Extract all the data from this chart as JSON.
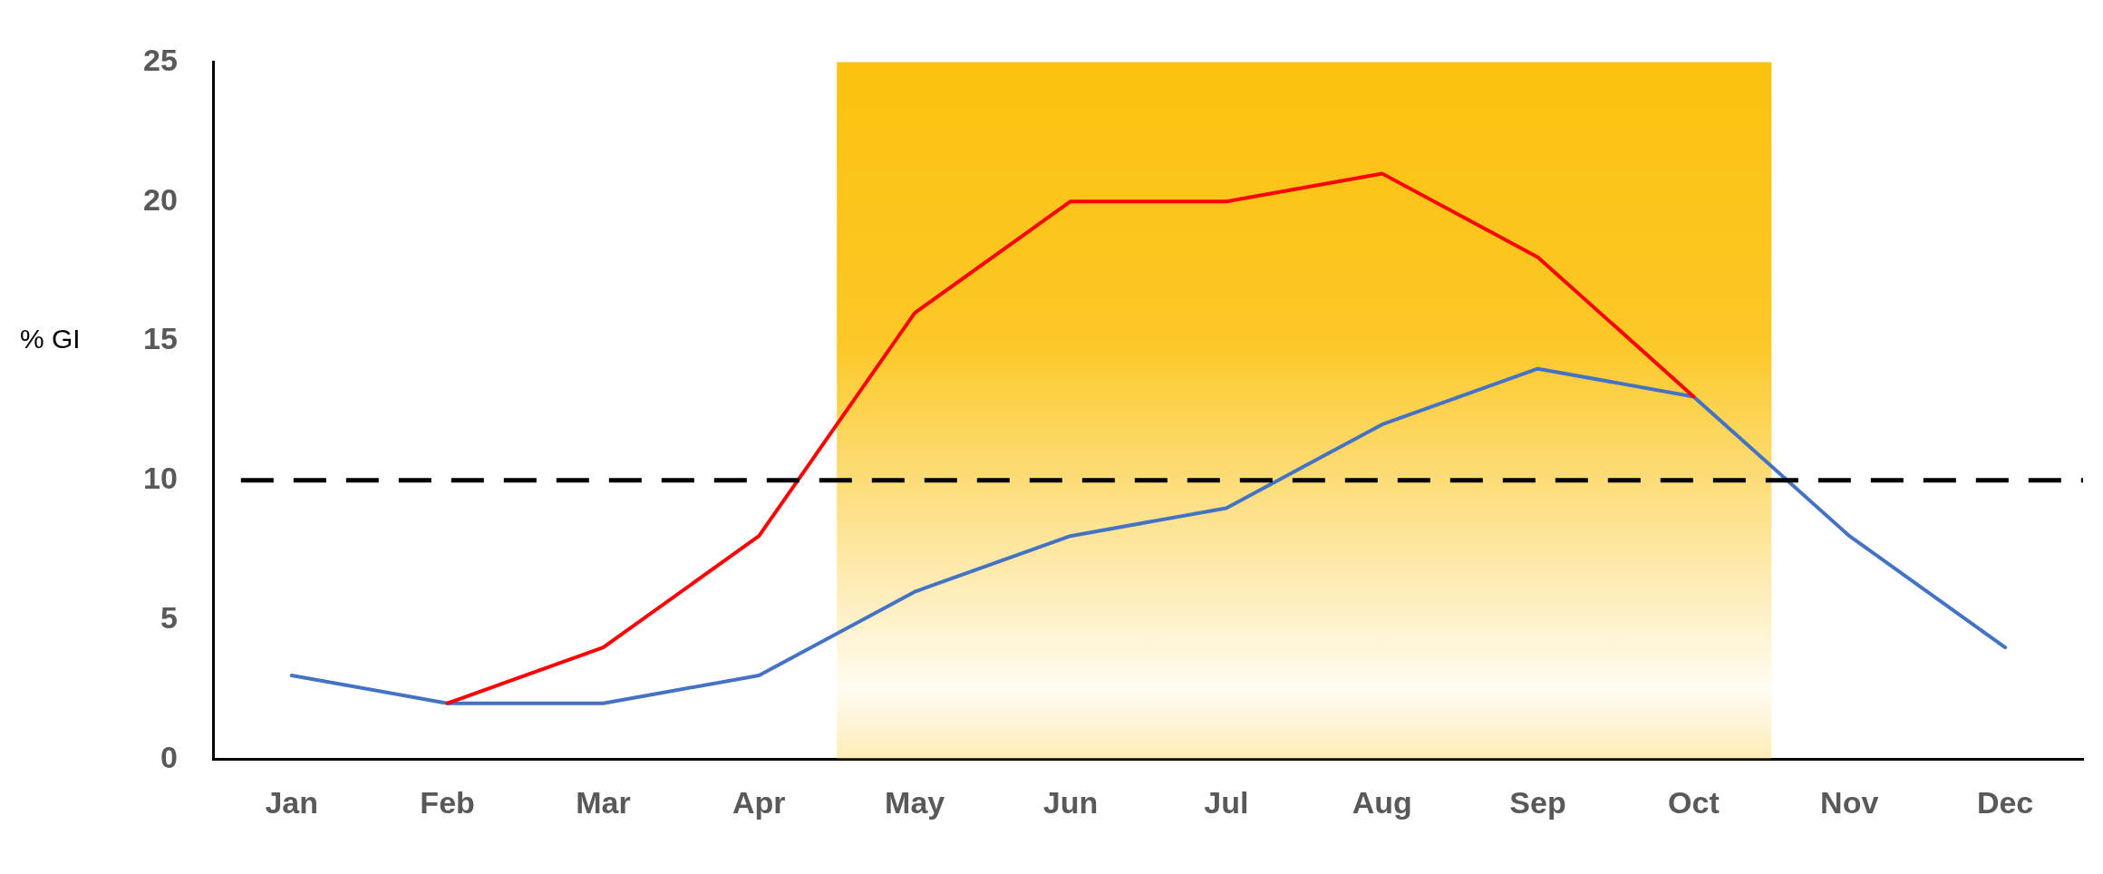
{
  "chart_data": {
    "type": "line",
    "ylabel": "% GI",
    "categories": [
      "Jan",
      "Feb",
      "Mar",
      "Apr",
      "May",
      "Jun",
      "Jul",
      "Aug",
      "Sep",
      "Oct",
      "Nov",
      "Dec"
    ],
    "ylim": [
      0,
      25
    ],
    "yticks": [
      0,
      5,
      10,
      15,
      20,
      25
    ],
    "series": [
      {
        "color": "#ff0000",
        "values": [
          null,
          2,
          4,
          8,
          16,
          20,
          20,
          21,
          18,
          13,
          null,
          null
        ]
      },
      {
        "color": "#4472c4",
        "values": [
          3,
          2,
          2,
          3,
          6,
          8,
          9,
          12,
          14,
          13,
          8,
          4
        ]
      }
    ],
    "ref_lines": [
      {
        "axis": "y",
        "value": 10,
        "color": "#000000",
        "line_style": "dashed"
      }
    ],
    "bands": [
      {
        "axis": "x",
        "from": "May",
        "to": "Oct",
        "color": "#fcc20f"
      }
    ],
    "grid": false,
    "legend": false,
    "marker": "none",
    "line_style": "solid"
  }
}
